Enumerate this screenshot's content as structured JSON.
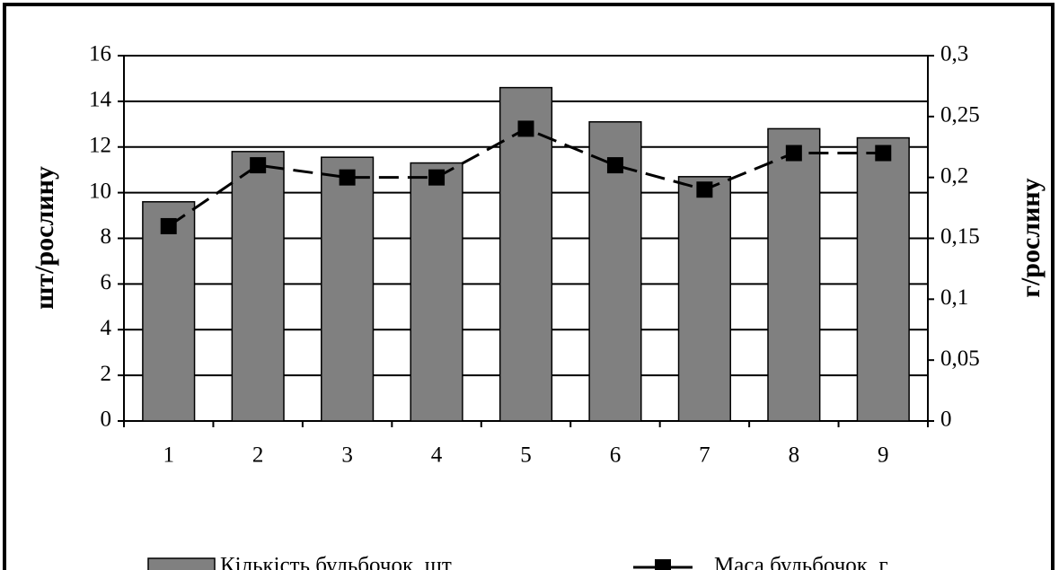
{
  "chart_data": {
    "type": "bar",
    "categories": [
      "1",
      "2",
      "3",
      "4",
      "5",
      "6",
      "7",
      "8",
      "9"
    ],
    "series": [
      {
        "name": "Кількість бульбочок, шт",
        "type": "bar",
        "color": "#808080",
        "values": [
          9.6,
          11.8,
          11.55,
          11.3,
          14.6,
          13.1,
          10.7,
          12.8,
          12.4
        ]
      },
      {
        "name": "Маса бульбочок, г",
        "type": "line",
        "axis": "y2",
        "color": "#000000",
        "values": [
          0.16,
          0.21,
          0.2,
          0.2,
          0.24,
          0.21,
          0.19,
          0.22,
          0.22
        ]
      }
    ],
    "ylabel": "шт/рослину",
    "y2label": "г/рослину",
    "ylim": [
      0,
      16
    ],
    "yticks": [
      0,
      2,
      4,
      6,
      8,
      10,
      12,
      14,
      16
    ],
    "y2lim": [
      0,
      0.3
    ],
    "y2ticks": [
      0,
      {
        "value": 0.05,
        "label": "0,05"
      },
      {
        "value": 0.1,
        "label": "0,1"
      },
      {
        "value": 0.15,
        "label": "0,15"
      },
      {
        "value": 0.2,
        "label": "0,2"
      },
      {
        "value": 0.25,
        "label": "0,25"
      },
      {
        "value": 0.3,
        "label": "0,3"
      }
    ],
    "grid": true,
    "legend": "bottom"
  }
}
